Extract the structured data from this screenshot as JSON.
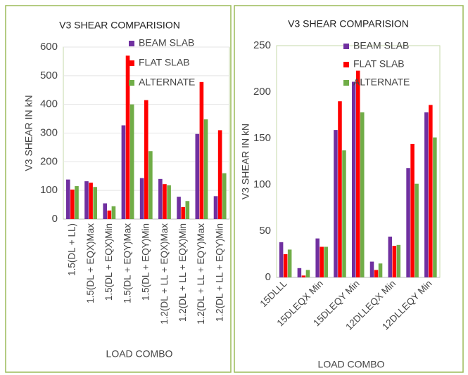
{
  "chart_data": [
    {
      "type": "bar",
      "title": "V3 SHEAR COMPARISION",
      "x_label": "LOAD COMBO",
      "y_label": "V3 SHEAR IN kN",
      "categories": [
        "1.5(DL + LL)",
        "1.5(DL + EQX)Max",
        "1.5(DL + EQX)Min",
        "1.5(DL + EQY)Max",
        "1.5(DL + EQY)Min",
        "1.2(DL + LL + EQX)Max",
        "1.2(DL + LL + EQX)Min",
        "1.2(DL + LL + EQY)Max",
        "1.2(DL + LL + EQY)Min"
      ],
      "series": [
        {
          "name": "BEAM SLAB",
          "color": "#7030a0",
          "values": [
            138,
            132,
            55,
            327,
            143,
            140,
            78,
            297,
            80
          ]
        },
        {
          "name": "FLAT SLAB",
          "color": "#ff0000",
          "values": [
            103,
            127,
            30,
            570,
            415,
            122,
            42,
            478,
            310
          ]
        },
        {
          "name": "ALTERNATE",
          "color": "#70ad47",
          "values": [
            115,
            112,
            45,
            400,
            237,
            118,
            63,
            348,
            160
          ]
        }
      ],
      "ylim": [
        0,
        600
      ],
      "yticks": [
        0,
        100,
        200,
        300,
        400,
        500,
        600
      ],
      "grid": true,
      "legend": "top-right"
    },
    {
      "type": "bar",
      "title": "V3 SHEAR COMPARISION",
      "x_label": "LOAD COMBO",
      "y_label": "V3 SHEAR IN kN",
      "categories": [
        "15DLLL",
        null,
        "15DLEQX Min",
        null,
        "15DLEQY Min",
        null,
        "12DLLEQX Min",
        null,
        "12DLLEQY Min"
      ],
      "series": [
        {
          "name": "BEAM SLAB",
          "color": "#7030a0",
          "values": [
            38,
            10,
            42,
            159,
            211,
            17,
            44,
            118,
            178
          ]
        },
        {
          "name": "FLAT SLAB",
          "color": "#ff0000",
          "values": [
            25,
            2,
            33,
            190,
            223,
            8,
            34,
            144,
            186
          ]
        },
        {
          "name": "ALTERNATE",
          "color": "#70ad47",
          "values": [
            30,
            8,
            33,
            137,
            178,
            15,
            35,
            101,
            151
          ]
        }
      ],
      "ylim": [
        0,
        250
      ],
      "yticks": [
        0,
        50,
        100,
        150,
        200,
        250
      ],
      "grid": false,
      "legend": "top-right"
    }
  ]
}
